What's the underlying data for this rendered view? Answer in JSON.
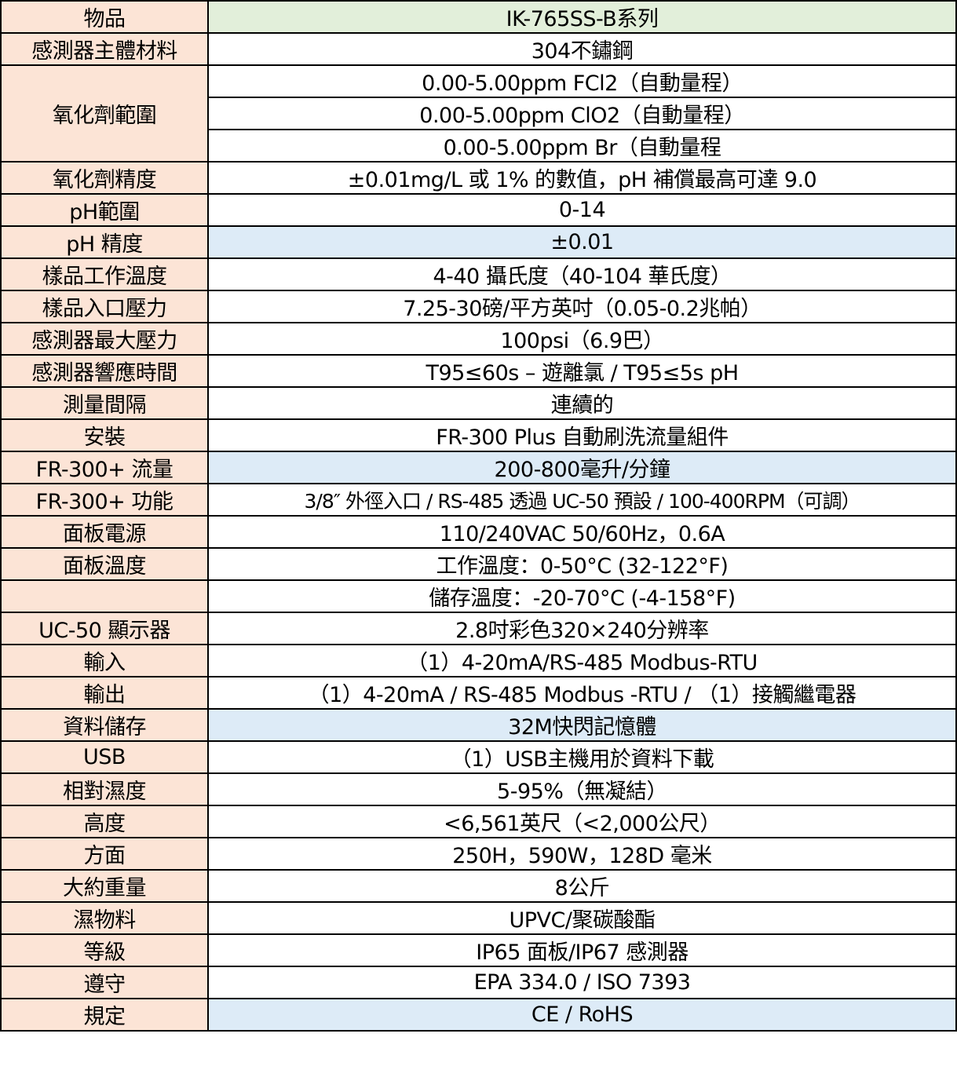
{
  "colors": {
    "label_bg": "#fce4d6",
    "header_bg": "#e2efda",
    "highlight_bg": "#ddebf7"
  },
  "rows": [
    {
      "label": "物品",
      "value": "IK-765SS-B系列"
    },
    {
      "label": "感測器主體材料",
      "value": "304不鏽鋼"
    },
    {
      "label": "氧化劑範圍",
      "values": [
        "0.00-5.00ppm FCl2（自動量程）",
        "0.00-5.00ppm ClO2（自動量程）",
        "0.00-5.00ppm Br（自動量程"
      ]
    },
    {
      "label": "氧化劑精度",
      "value": "±0.01mg/L 或 1% 的數值，pH 補償最高可達 9.0"
    },
    {
      "label": "pH範圍",
      "value": "0-14"
    },
    {
      "label": "pH 精度",
      "value": "±0.01"
    },
    {
      "label": "樣品工作溫度",
      "value": "4-40 攝氏度（40-104 華氏度）"
    },
    {
      "label": "樣品入口壓力",
      "value": "7.25-30磅/平方英吋（0.05-0.2兆帕）"
    },
    {
      "label": "感測器最大壓力",
      "value": "100psi（6.9巴）"
    },
    {
      "label": "感測器響應時間",
      "value": "T95≤60s – 遊離氯 / T95≤5s pH"
    },
    {
      "label": "測量間隔",
      "value": "連續的"
    },
    {
      "label": "安裝",
      "value": "FR-300 Plus 自動刷洗流量組件"
    },
    {
      "label": "FR-300+ 流量",
      "value": "200-800毫升/分鐘"
    },
    {
      "label": "FR-300+ 功能",
      "value": "3/8″ 外徑入口 / RS-485 透過 UC-50 預設 / 100-400RPM（可調）"
    },
    {
      "label": "面板電源",
      "value": "110/240VAC 50/60Hz，0.6A"
    },
    {
      "label": "面板溫度",
      "value": "工作溫度：0-50°C (32-122°F)"
    },
    {
      "label": "",
      "value": "儲存溫度：-20-70°C (-4-158°F)"
    },
    {
      "label": "UC-50 顯示器",
      "value": "2.8吋彩色320×240分辨率"
    },
    {
      "label": "輸入",
      "value": "（1）4-20mA/RS-485 Modbus-RTU"
    },
    {
      "label": "輸出",
      "value": "（1）4-20mA / RS-485 Modbus -RTU / （1）接觸繼電器"
    },
    {
      "label": "資料儲存",
      "value": "32M快閃記憶體"
    },
    {
      "label": "USB",
      "value": "（1）USB主機用於資料下載"
    },
    {
      "label": "相對濕度",
      "value": "5-95%（無凝結）"
    },
    {
      "label": "高度",
      "value": "<6,561英尺（<2,000公尺）"
    },
    {
      "label": "方面",
      "value": "250H，590W，128D 毫米"
    },
    {
      "label": "大約重量",
      "value": "8公斤"
    },
    {
      "label": "濕物料",
      "value": "UPVC/聚碳酸酯"
    },
    {
      "label": "等級",
      "value": "IP65 面板/IP67 感測器"
    },
    {
      "label": "遵守",
      "value": "EPA 334.0 / ISO 7393"
    },
    {
      "label": "規定",
      "value": "CE / RoHS"
    }
  ]
}
